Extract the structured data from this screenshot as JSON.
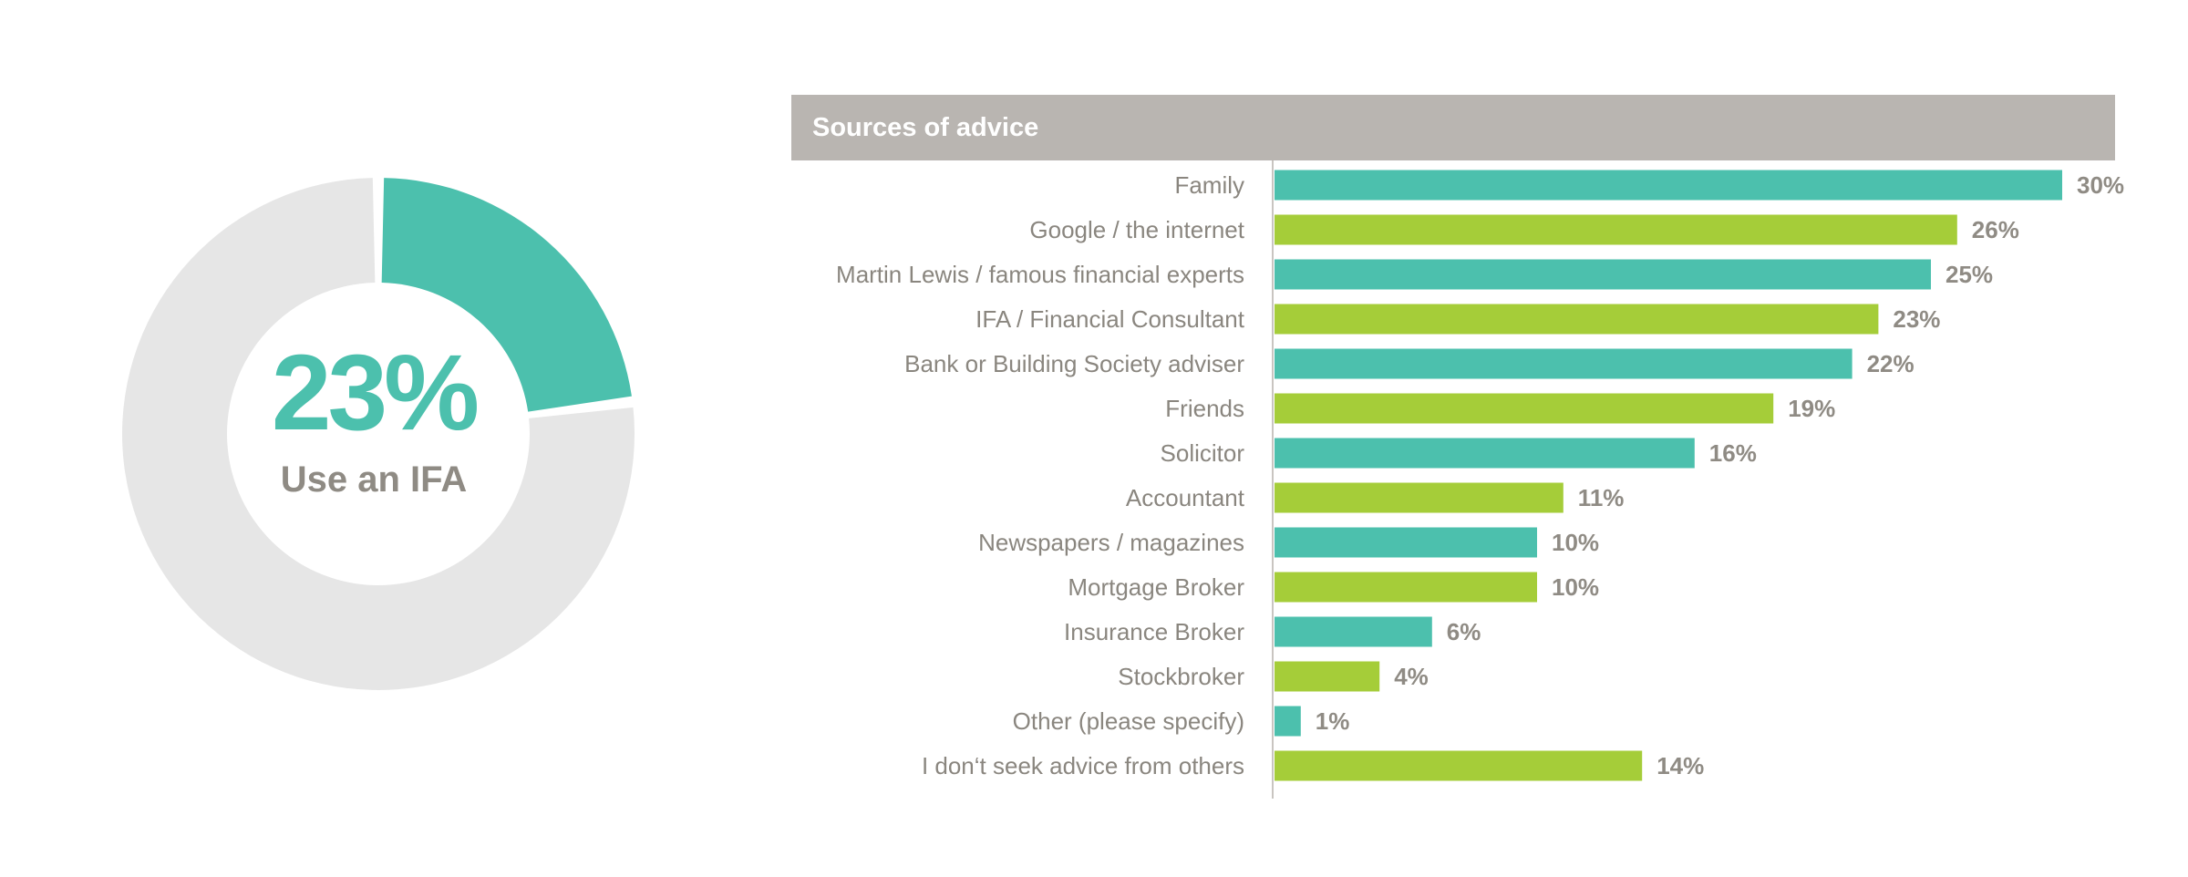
{
  "chart_data": [
    {
      "type": "pie",
      "variant": "donut",
      "values": [
        23,
        77
      ],
      "value_label": "23%",
      "label": "Use an IFA",
      "colors": [
        "#4cc0ad",
        "#e6e6e6"
      ]
    },
    {
      "type": "bar",
      "orientation": "horizontal",
      "title": "Sources of advice",
      "categories": [
        "Family",
        "Google / the internet",
        "Martin Lewis / famous financial experts",
        "IFA / Financial Consultant",
        "Bank or Building Society adviser",
        "Friends",
        "Solicitor",
        "Accountant",
        "Newspapers / magazines",
        "Mortgage Broker",
        "Insurance Broker",
        "Stockbroker",
        "Other (please specify)",
        "I don‘t seek advice from others"
      ],
      "values": [
        30,
        26,
        25,
        23,
        22,
        19,
        16,
        11,
        10,
        10,
        6,
        4,
        1,
        14
      ],
      "value_labels": [
        "30%",
        "26%",
        "25%",
        "23%",
        "22%",
        "19%",
        "16%",
        "11%",
        "10%",
        "10%",
        "6%",
        "4%",
        "1%",
        "14%"
      ],
      "xlim": [
        0,
        30
      ],
      "colors": [
        "#4cc0ad",
        "#a5cd39"
      ],
      "header_color": "#b9b5b1",
      "grid": false
    }
  ]
}
